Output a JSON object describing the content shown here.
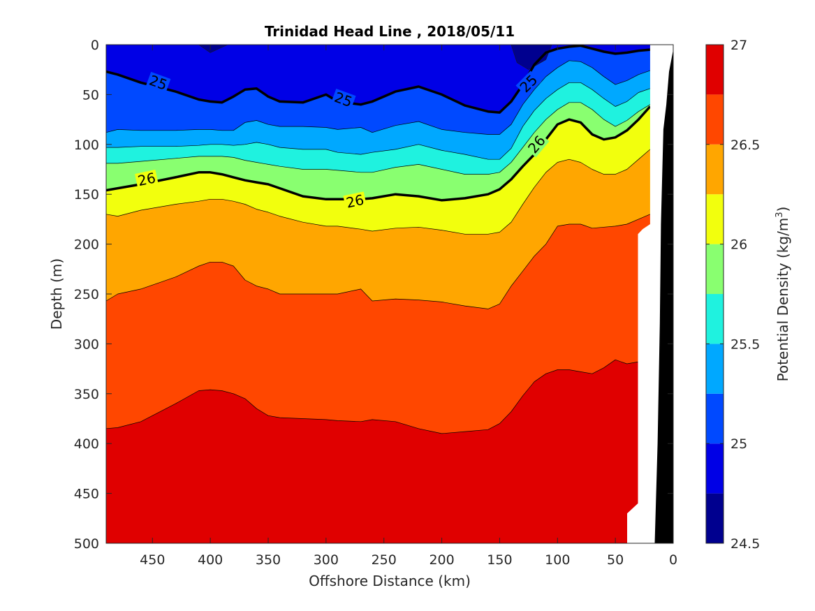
{
  "chart_data": {
    "type": "heatmap",
    "subtype": "filled-contour",
    "title": "Trinidad Head Line , 2018/05/11",
    "xlabel": "Offshore Distance (km)",
    "ylabel": "Depth (m)",
    "xlim": [
      490,
      0
    ],
    "ylim": [
      0,
      500
    ],
    "x_reversed": true,
    "y_reversed": true,
    "x_ticks": [
      "450",
      "400",
      "350",
      "300",
      "250",
      "200",
      "150",
      "100",
      "50",
      "0"
    ],
    "y_ticks": [
      "0",
      "50",
      "100",
      "150",
      "200",
      "250",
      "300",
      "350",
      "400",
      "450",
      "500"
    ],
    "colorbar": {
      "label": "Potential Density (kg/m",
      "label_sup": "3",
      "label_end": ")",
      "range": [
        24.5,
        27
      ],
      "ticks": [
        "24.5",
        "25",
        "25.5",
        "26",
        "26.5",
        "27"
      ],
      "levels": [
        24.5,
        24.75,
        25.0,
        25.25,
        25.5,
        25.75,
        26.0,
        26.25,
        26.5,
        26.75,
        27.0
      ],
      "colors": [
        "#00008f",
        "#0000e6",
        "#0049ff",
        "#00a8ff",
        "#1ff2df",
        "#89ff70",
        "#f2ff0d",
        "#ffa600",
        "#ff4700",
        "#e00000"
      ]
    },
    "x_grid": [
      490,
      480,
      460,
      430,
      410,
      400,
      390,
      380,
      370,
      360,
      350,
      340,
      320,
      300,
      290,
      270,
      260,
      240,
      220,
      200,
      180,
      160,
      150,
      140,
      130,
      120,
      110,
      100,
      90,
      80,
      70,
      60,
      50,
      40,
      30,
      20
    ],
    "isopycnal_depths": [
      {
        "sigma": 24.75,
        "depths": [
          0,
          0,
          0,
          0,
          0,
          0,
          0,
          0,
          0,
          0,
          0,
          0,
          0,
          0,
          0,
          0,
          0,
          0,
          0,
          0,
          0,
          0,
          0,
          0,
          0,
          0,
          0,
          0,
          0,
          0,
          0,
          0,
          0,
          0,
          0,
          0
        ]
      },
      {
        "sigma": 25.0,
        "depths": [
          27,
          30,
          38,
          47,
          55,
          57,
          58,
          52,
          45,
          44,
          52,
          57,
          58,
          50,
          57,
          60,
          57,
          47,
          42,
          50,
          61,
          67,
          68,
          57,
          40,
          20,
          8,
          4,
          2,
          1,
          4,
          7,
          9,
          8,
          6,
          5
        ]
      },
      {
        "sigma": 25.25,
        "depths": [
          88,
          85,
          86,
          86,
          85,
          85,
          86,
          86,
          78,
          76,
          80,
          82,
          82,
          83,
          85,
          83,
          88,
          81,
          77,
          85,
          88,
          90,
          90,
          80,
          60,
          45,
          32,
          23,
          16,
          17,
          23,
          32,
          40,
          36,
          30,
          26
        ]
      },
      {
        "sigma": 25.5,
        "depths": [
          103,
          103,
          102,
          102,
          101,
          100,
          100,
          101,
          100,
          98,
          100,
          103,
          105,
          105,
          108,
          110,
          108,
          105,
          100,
          106,
          110,
          115,
          115,
          104,
          82,
          66,
          54,
          45,
          38,
          38,
          45,
          54,
          62,
          57,
          48,
          44
        ]
      },
      {
        "sigma": 25.75,
        "depths": [
          119,
          119,
          117,
          114,
          112,
          112,
          112,
          113,
          116,
          118,
          120,
          122,
          125,
          125,
          126,
          128,
          128,
          123,
          120,
          125,
          130,
          130,
          128,
          118,
          103,
          88,
          75,
          65,
          58,
          58,
          65,
          75,
          82,
          76,
          67,
          60
        ]
      },
      {
        "sigma": 26.0,
        "depths": [
          146,
          144,
          140,
          133,
          128,
          128,
          130,
          133,
          136,
          138,
          140,
          144,
          152,
          155,
          155,
          155,
          154,
          150,
          152,
          156,
          154,
          150,
          145,
          135,
          122,
          110,
          95,
          80,
          75,
          78,
          90,
          95,
          93,
          86,
          75,
          62
        ]
      },
      {
        "sigma": 26.25,
        "depths": [
          170,
          172,
          166,
          160,
          157,
          155,
          155,
          157,
          160,
          165,
          168,
          172,
          178,
          182,
          182,
          185,
          187,
          184,
          183,
          186,
          190,
          190,
          188,
          178,
          160,
          143,
          128,
          118,
          115,
          118,
          125,
          130,
          130,
          125,
          115,
          105
        ]
      },
      {
        "sigma": 26.5,
        "depths": [
          257,
          250,
          245,
          233,
          222,
          218,
          218,
          222,
          236,
          242,
          245,
          250,
          250,
          250,
          250,
          245,
          257,
          255,
          256,
          258,
          262,
          265,
          260,
          242,
          227,
          212,
          200,
          182,
          180,
          180,
          184,
          183,
          182,
          180,
          175,
          170
        ]
      },
      {
        "sigma": 26.75,
        "depths": [
          385,
          384,
          378,
          360,
          347,
          346,
          347,
          350,
          355,
          365,
          372,
          374,
          375,
          376,
          377,
          378,
          376,
          378,
          385,
          390,
          388,
          386,
          380,
          368,
          352,
          338,
          330,
          326,
          326,
          328,
          330,
          324,
          316,
          320,
          318,
          315
        ]
      }
    ],
    "contour_labels": [
      {
        "text": "25",
        "x": 445,
        "depth": 38
      },
      {
        "text": "25",
        "x": 285,
        "depth": 55
      },
      {
        "text": "25",
        "x": 125,
        "depth": 39
      },
      {
        "text": "26",
        "x": 455,
        "depth": 135
      },
      {
        "text": "26",
        "x": 275,
        "depth": 157
      },
      {
        "text": "26",
        "x": 118,
        "depth": 100
      }
    ],
    "bathymetry": {
      "no_data_mask": [
        [
          39.8,
          500
        ],
        [
          39.8,
          470
        ],
        [
          30.5,
          460
        ],
        [
          30.5,
          190
        ],
        [
          26.5,
          185
        ],
        [
          20,
          180
        ],
        [
          20,
          0
        ],
        [
          0,
          0
        ],
        [
          0,
          500
        ]
      ],
      "seafloor": [
        [
          0,
          5
        ],
        [
          3.6,
          27
        ],
        [
          6,
          60
        ],
        [
          8.5,
          85
        ],
        [
          10.6,
          180
        ],
        [
          11.6,
          280
        ],
        [
          13.5,
          400
        ],
        [
          16,
          500
        ],
        [
          0,
          500
        ]
      ]
    },
    "grid": false,
    "legend": "colorbar-right"
  }
}
